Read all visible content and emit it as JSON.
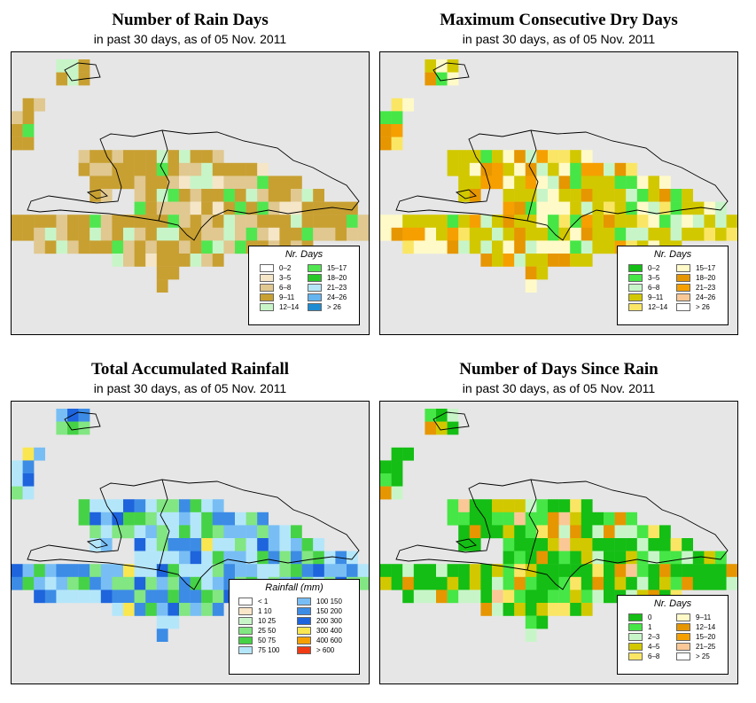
{
  "panels": [
    {
      "title": "Number of Rain Days",
      "subtitle": "in past 30 days, as of  05 Nov. 2011",
      "legend_title": "Nr. Days",
      "legend": [
        {
          "label": "0–2",
          "color": "#ffffff"
        },
        {
          "label": "3–5",
          "color": "#f5e6c8"
        },
        {
          "label": "6–8",
          "color": "#e0c890"
        },
        {
          "label": "9–11",
          "color": "#c8a032"
        },
        {
          "label": "12–14",
          "color": "#c8f5c8"
        },
        {
          "label": "15–17",
          "color": "#50e650"
        },
        {
          "label": "18–20",
          "color": "#28c828"
        },
        {
          "label": "21–23",
          "color": "#b4e6f5"
        },
        {
          "label": "24–26",
          "color": "#64b4f0"
        },
        {
          "label": "> 26",
          "color": "#1e8cd2"
        }
      ]
    },
    {
      "title": "Maximum Consecutive Dry Days",
      "subtitle": "in past 30 days, as of  05 Nov. 2011",
      "legend_title": "Nr. Days",
      "legend": [
        {
          "label": "0–2",
          "color": "#14be14"
        },
        {
          "label": "3–5",
          "color": "#46e646"
        },
        {
          "label": "6–8",
          "color": "#c8f5c8"
        },
        {
          "label": "9–11",
          "color": "#d2c800"
        },
        {
          "label": "12–14",
          "color": "#fae664"
        },
        {
          "label": "15–17",
          "color": "#fffac8"
        },
        {
          "label": "18–20",
          "color": "#e69600"
        },
        {
          "label": "21–23",
          "color": "#f5a000"
        },
        {
          "label": "24–26",
          "color": "#fac896"
        },
        {
          "label": "> 26",
          "color": "#ffffff"
        }
      ]
    },
    {
      "title": "Total Accumulated Rainfall",
      "subtitle": "in past 30 days, as of  05 Nov. 2011",
      "legend_title": "Rainfall (mm)",
      "legend": [
        {
          "label": "< 1",
          "color": "#ffffff"
        },
        {
          "label": "1    10",
          "color": "#fae6c8"
        },
        {
          "label": "10    25",
          "color": "#c8f5c8"
        },
        {
          "label": "25    50",
          "color": "#82e682"
        },
        {
          "label": "50    75",
          "color": "#46d246"
        },
        {
          "label": "75  100",
          "color": "#b4e6fa"
        },
        {
          "label": "100  150",
          "color": "#78bef5"
        },
        {
          "label": "150  200",
          "color": "#3c8ce6"
        },
        {
          "label": "200  300",
          "color": "#1e64dc"
        },
        {
          "label": "300  400",
          "color": "#fae650"
        },
        {
          "label": "400  600",
          "color": "#f5a000"
        },
        {
          "label": "> 600",
          "color": "#f03c14"
        }
      ]
    },
    {
      "title": "Number of Days Since Rain",
      "subtitle": "in past 30 days, as of  05 Nov. 2011",
      "legend_title": "Nr. Days",
      "legend": [
        {
          "label": "0",
          "color": "#14be14"
        },
        {
          "label": "1",
          "color": "#46e646"
        },
        {
          "label": "2–3",
          "color": "#c8f5c8"
        },
        {
          "label": "4–5",
          "color": "#d2c800"
        },
        {
          "label": "6–8",
          "color": "#fae664"
        },
        {
          "label": "9–11",
          "color": "#fffac8"
        },
        {
          "label": "12–14",
          "color": "#e69600"
        },
        {
          "label": "15–20",
          "color": "#f5a000"
        },
        {
          "label": "21–25",
          "color": "#fac896"
        },
        {
          "label": "> 25",
          "color": "#ffffff"
        }
      ]
    }
  ]
}
